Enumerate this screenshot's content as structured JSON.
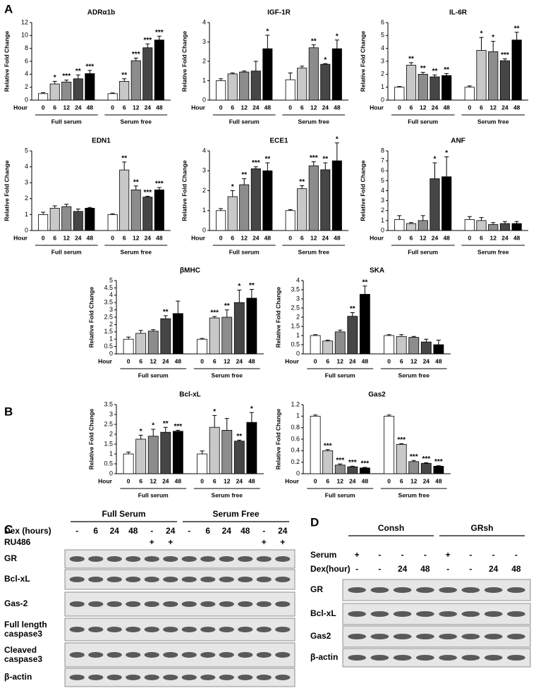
{
  "panel_labels": [
    "A",
    "B",
    "C",
    "D"
  ],
  "chart_data": [
    {
      "type": "bar",
      "title": "ADRα1b",
      "ylabel": "Relative Fold Change",
      "xlabel": "Hour",
      "categories": [
        "0",
        "6",
        "12",
        "24",
        "48"
      ],
      "colors": [
        "#ffffff",
        "#c8c8c8",
        "#8c8c8c",
        "#464646",
        "#000000"
      ],
      "ylim": [
        0,
        12
      ],
      "yticks": [
        0,
        2,
        4,
        6,
        8,
        10,
        12
      ],
      "groups": [
        {
          "name": "Full serum",
          "values": [
            1,
            2.5,
            2.8,
            3.3,
            4.1
          ],
          "errors": [
            0.15,
            0.4,
            0.3,
            0.6,
            0.5
          ],
          "labels": [
            null,
            "*",
            "***",
            "**",
            "***"
          ]
        },
        {
          "name": "Serum free",
          "values": [
            1,
            2.9,
            6.1,
            8.1,
            9.3
          ],
          "errors": [
            0.1,
            0.4,
            0.4,
            0.6,
            0.6
          ],
          "labels": [
            null,
            "**",
            "***",
            "***",
            "***"
          ]
        }
      ]
    },
    {
      "type": "bar",
      "title": "IGF-1R",
      "ylabel": "Relative Fold Change",
      "xlabel": "Hour",
      "categories": [
        "0",
        "6",
        "12",
        "24",
        "48"
      ],
      "colors": [
        "#ffffff",
        "#c8c8c8",
        "#8c8c8c",
        "#464646",
        "#000000"
      ],
      "ylim": [
        0,
        4
      ],
      "yticks": [
        0,
        1,
        2,
        3,
        4
      ],
      "groups": [
        {
          "name": "Full serum",
          "values": [
            1,
            1.35,
            1.45,
            1.5,
            2.65
          ],
          "errors": [
            0.1,
            0.05,
            0.05,
            0.5,
            0.7
          ],
          "labels": [
            null,
            null,
            null,
            null,
            "*"
          ]
        },
        {
          "name": "Serum free",
          "values": [
            1.05,
            1.65,
            2.7,
            1.85,
            2.65
          ],
          "errors": [
            0.35,
            0.1,
            0.15,
            0.03,
            0.45
          ],
          "labels": [
            null,
            null,
            "**",
            "*",
            "*"
          ]
        }
      ]
    },
    {
      "type": "bar",
      "title": "IL-6R",
      "ylabel": "Relative Fold Change",
      "xlabel": "Hour",
      "categories": [
        "0",
        "6",
        "12",
        "24",
        "48"
      ],
      "colors": [
        "#ffffff",
        "#c8c8c8",
        "#8c8c8c",
        "#464646",
        "#000000"
      ],
      "ylim": [
        0,
        6
      ],
      "yticks": [
        0,
        1,
        2,
        3,
        4,
        5,
        6
      ],
      "groups": [
        {
          "name": "Full serum",
          "values": [
            1,
            2.7,
            2.0,
            1.8,
            1.9
          ],
          "errors": [
            0.05,
            0.2,
            0.15,
            0.15,
            0.15
          ],
          "labels": [
            null,
            "**",
            "**",
            "**",
            "**"
          ]
        },
        {
          "name": "Serum free",
          "values": [
            1,
            3.85,
            3.75,
            3.05,
            4.65
          ],
          "errors": [
            0.1,
            1.0,
            0.8,
            0.15,
            0.6
          ],
          "labels": [
            null,
            "*",
            "*",
            "***",
            "**"
          ]
        }
      ]
    },
    {
      "type": "bar",
      "title": "EDN1",
      "ylabel": "Relative Fold Change",
      "xlabel": "Hour",
      "categories": [
        "0",
        "6",
        "12",
        "24",
        "48"
      ],
      "colors": [
        "#ffffff",
        "#c8c8c8",
        "#8c8c8c",
        "#464646",
        "#000000"
      ],
      "ylim": [
        0,
        5
      ],
      "yticks": [
        0,
        1,
        2,
        3,
        4,
        5
      ],
      "groups": [
        {
          "name": "Full serum",
          "values": [
            1,
            1.4,
            1.5,
            1.2,
            1.4
          ],
          "errors": [
            0.15,
            0.15,
            0.15,
            0.15,
            0.05
          ],
          "labels": [
            null,
            null,
            null,
            null,
            null
          ]
        },
        {
          "name": "Serum free",
          "values": [
            1,
            3.8,
            2.55,
            2.1,
            2.55
          ],
          "errors": [
            0.05,
            0.5,
            0.25,
            0.05,
            0.15
          ],
          "labels": [
            null,
            "**",
            "**",
            "***",
            "***"
          ]
        }
      ]
    },
    {
      "type": "bar",
      "title": "ECE1",
      "ylabel": "Relative Fold Change",
      "xlabel": "Hour",
      "categories": [
        "0",
        "6",
        "12",
        "24",
        "48"
      ],
      "colors": [
        "#ffffff",
        "#c8c8c8",
        "#8c8c8c",
        "#464646",
        "#000000"
      ],
      "ylim": [
        0,
        4
      ],
      "yticks": [
        0,
        1,
        2,
        3,
        4
      ],
      "groups": [
        {
          "name": "Full serum",
          "values": [
            1,
            1.7,
            2.3,
            3.1,
            3.0
          ],
          "errors": [
            0.1,
            0.3,
            0.3,
            0.1,
            0.4
          ],
          "labels": [
            null,
            "*",
            "**",
            "***",
            "**"
          ]
        },
        {
          "name": "Serum free",
          "values": [
            1,
            2.1,
            3.25,
            3.05,
            3.5
          ],
          "errors": [
            0.05,
            0.15,
            0.2,
            0.35,
            0.9
          ],
          "labels": [
            null,
            "**",
            "***",
            "**",
            "*"
          ]
        }
      ]
    },
    {
      "type": "bar",
      "title": "ANF",
      "ylabel": "Relative Fold Change",
      "xlabel": "Hour",
      "categories": [
        "0",
        "6",
        "12",
        "24",
        "48"
      ],
      "colors": [
        "#ffffff",
        "#c8c8c8",
        "#8c8c8c",
        "#464646",
        "#000000"
      ],
      "ylim": [
        0,
        8
      ],
      "yticks": [
        0,
        1,
        2,
        3,
        4,
        5,
        6,
        7,
        8
      ],
      "groups": [
        {
          "name": "Full serum",
          "values": [
            1.1,
            0.7,
            1.0,
            5.2,
            5.4
          ],
          "errors": [
            0.4,
            0.1,
            0.5,
            1.6,
            2.0
          ],
          "labels": [
            null,
            null,
            null,
            "*",
            "*"
          ]
        },
        {
          "name": "Serum free",
          "values": [
            1.1,
            1.0,
            0.6,
            0.7,
            0.7
          ],
          "errors": [
            0.3,
            0.3,
            0.2,
            0.2,
            0.2
          ],
          "labels": [
            null,
            null,
            null,
            null,
            null
          ]
        }
      ]
    },
    {
      "type": "bar",
      "title": "βMHC",
      "ylabel": "Relative Fold Change",
      "xlabel": "Hour",
      "categories": [
        "0",
        "6",
        "12",
        "24",
        "48"
      ],
      "colors": [
        "#ffffff",
        "#c8c8c8",
        "#8c8c8c",
        "#464646",
        "#000000"
      ],
      "ylim": [
        0,
        5
      ],
      "yticks": [
        0,
        0.5,
        1,
        1.5,
        2,
        2.5,
        3,
        3.5,
        4,
        4.5,
        5
      ],
      "groups": [
        {
          "name": "Full serum",
          "values": [
            1,
            1.4,
            1.55,
            2.4,
            2.75
          ],
          "errors": [
            0.15,
            0.2,
            0.1,
            0.2,
            0.85
          ],
          "labels": [
            null,
            null,
            null,
            "**",
            null
          ]
        },
        {
          "name": "Serum free",
          "values": [
            1,
            2.45,
            2.5,
            3.5,
            3.8
          ],
          "errors": [
            0.05,
            0.1,
            0.5,
            0.85,
            0.6
          ],
          "labels": [
            null,
            "***",
            "**",
            "*",
            "**"
          ]
        }
      ]
    },
    {
      "type": "bar",
      "title": "SKA",
      "ylabel": "Relative Fold Change",
      "xlabel": "Hour",
      "categories": [
        "0",
        "6",
        "12",
        "24",
        "48"
      ],
      "colors": [
        "#ffffff",
        "#c8c8c8",
        "#8c8c8c",
        "#464646",
        "#000000"
      ],
      "ylim": [
        0,
        4
      ],
      "yticks": [
        0,
        0.5,
        1,
        1.5,
        2,
        2.5,
        3,
        3.5,
        4
      ],
      "groups": [
        {
          "name": "Full serum",
          "values": [
            1,
            0.7,
            1.2,
            2.05,
            3.25
          ],
          "errors": [
            0.05,
            0.05,
            0.1,
            0.2,
            0.45
          ],
          "labels": [
            null,
            null,
            null,
            "**",
            "**"
          ]
        },
        {
          "name": "Serum free",
          "values": [
            1,
            0.95,
            0.9,
            0.65,
            0.5
          ],
          "errors": [
            0.05,
            0.1,
            0.05,
            0.15,
            0.25
          ],
          "labels": [
            null,
            null,
            null,
            null,
            null
          ]
        }
      ]
    },
    {
      "type": "bar",
      "title": "Bcl-xL",
      "ylabel": "Relative Fold Change",
      "xlabel": "Hour",
      "categories": [
        "0",
        "6",
        "12",
        "24",
        "48"
      ],
      "colors": [
        "#ffffff",
        "#c8c8c8",
        "#8c8c8c",
        "#464646",
        "#000000"
      ],
      "ylim": [
        0,
        3.5
      ],
      "yticks": [
        0,
        0.5,
        1,
        1.5,
        2,
        2.5,
        3,
        3.5
      ],
      "groups": [
        {
          "name": "Full serum",
          "values": [
            1,
            1.75,
            1.9,
            2.1,
            2.15
          ],
          "errors": [
            0.1,
            0.2,
            0.35,
            0.25,
            0.05
          ],
          "labels": [
            null,
            "*",
            "*",
            "**",
            "***"
          ]
        },
        {
          "name": "Serum free",
          "values": [
            1,
            2.35,
            2.2,
            1.65,
            2.6
          ],
          "errors": [
            0.15,
            0.6,
            0.6,
            0.05,
            0.5
          ],
          "labels": [
            null,
            "*",
            null,
            "**",
            "*"
          ]
        }
      ]
    },
    {
      "type": "bar",
      "title": "Gas2",
      "ylabel": "Relative Fold Change",
      "xlabel": "Hour",
      "categories": [
        "0",
        "6",
        "12",
        "24",
        "48"
      ],
      "colors": [
        "#ffffff",
        "#c8c8c8",
        "#8c8c8c",
        "#464646",
        "#000000"
      ],
      "ylim": [
        0,
        1.2
      ],
      "yticks": [
        0,
        0.2,
        0.4,
        0.6,
        0.8,
        1,
        1.2
      ],
      "groups": [
        {
          "name": "Full serum",
          "values": [
            1,
            0.4,
            0.15,
            0.12,
            0.1
          ],
          "errors": [
            0.02,
            0.02,
            0.02,
            0.01,
            0.01
          ],
          "labels": [
            null,
            "***",
            "***",
            "***",
            "***"
          ]
        },
        {
          "name": "Serum free",
          "values": [
            1,
            0.51,
            0.21,
            0.18,
            0.13
          ],
          "errors": [
            0.02,
            0.01,
            0.02,
            0.01,
            0.01
          ],
          "labels": [
            null,
            "***",
            "***",
            "***",
            "***"
          ]
        }
      ]
    }
  ],
  "blot_c": {
    "groups": [
      "Full Serum",
      "Serum Free"
    ],
    "treatments": [
      {
        "name": "Dex (hours)",
        "lanes": [
          "-",
          "6",
          "24",
          "48",
          "-",
          "24",
          "-",
          "6",
          "24",
          "48",
          "-",
          "24"
        ]
      },
      {
        "name": "RU486",
        "lanes": [
          null,
          null,
          null,
          null,
          "+",
          "+",
          null,
          null,
          null,
          null,
          "+",
          "+"
        ]
      }
    ],
    "rows": [
      "GR",
      "Bcl-xL",
      "Gas-2",
      "Full length caspase3",
      "Cleaved caspase3",
      "β-actin"
    ]
  },
  "blot_d": {
    "groups": [
      "Consh",
      "GRsh"
    ],
    "treatments": [
      {
        "name": "Serum",
        "lanes": [
          "+",
          "-",
          "-",
          "-",
          "+",
          "-",
          "-",
          "-"
        ]
      },
      {
        "name": "Dex(hour)",
        "lanes": [
          "-",
          "-",
          "24",
          "48",
          "-",
          "-",
          "24",
          "48"
        ]
      }
    ],
    "rows": [
      "GR",
      "Bcl-xL",
      "Gas2",
      "β-actin"
    ]
  }
}
